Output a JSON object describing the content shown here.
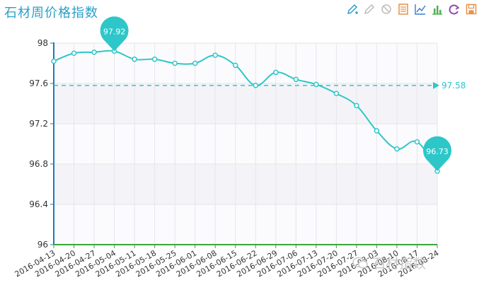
{
  "title": "石材周价格指数",
  "toolbar": [
    {
      "name": "mark-icon",
      "color": "#2a9fc9"
    },
    {
      "name": "clear-mark-icon",
      "color": "#bbbbbb"
    },
    {
      "name": "erase-icon",
      "color": "#bbbbbb"
    },
    {
      "name": "data-view-icon",
      "color": "#e6914a"
    },
    {
      "name": "line-chart-icon",
      "color": "#3a7bd5"
    },
    {
      "name": "bar-chart-icon",
      "color": "#4caf50"
    },
    {
      "name": "restore-icon",
      "color": "#8e44ad"
    },
    {
      "name": "save-image-icon",
      "color": "#e6914a"
    }
  ],
  "watermark": "石材指数",
  "chart_data": {
    "type": "line",
    "title": "石材周价格指数",
    "categories": [
      "2016-04-13",
      "2016-04-20",
      "2016-04-27",
      "2016-05-04",
      "2016-05-11",
      "2016-05-18",
      "2016-05-25",
      "2016-06-01",
      "2016-06-08",
      "2016-06-15",
      "2016-06-22",
      "2016-06-29",
      "2016-07-06",
      "2016-07-13",
      "2016-07-20",
      "2016-07-27",
      "2016-08-03",
      "2016-08-10",
      "2016-08-17",
      "2016-08-24"
    ],
    "values": [
      97.82,
      97.9,
      97.91,
      97.92,
      97.84,
      97.84,
      97.8,
      97.8,
      97.88,
      97.78,
      97.58,
      97.71,
      97.64,
      97.59,
      97.5,
      97.38,
      97.13,
      96.95,
      97.02,
      96.73
    ],
    "ylim": [
      96,
      98
    ],
    "yticks": [
      "96",
      "96.4",
      "96.8",
      "97.2",
      "97.6",
      "98"
    ],
    "mark_points": [
      {
        "label": "97.92",
        "index": 3
      },
      {
        "label": "96.73",
        "index": 19
      }
    ],
    "mark_line": {
      "label": "97.58",
      "value": 97.58
    },
    "series_color": "#2ec7c9",
    "axis_color": "#1a7bb9",
    "x_axis_color": "#3aa63a",
    "grid": true
  }
}
